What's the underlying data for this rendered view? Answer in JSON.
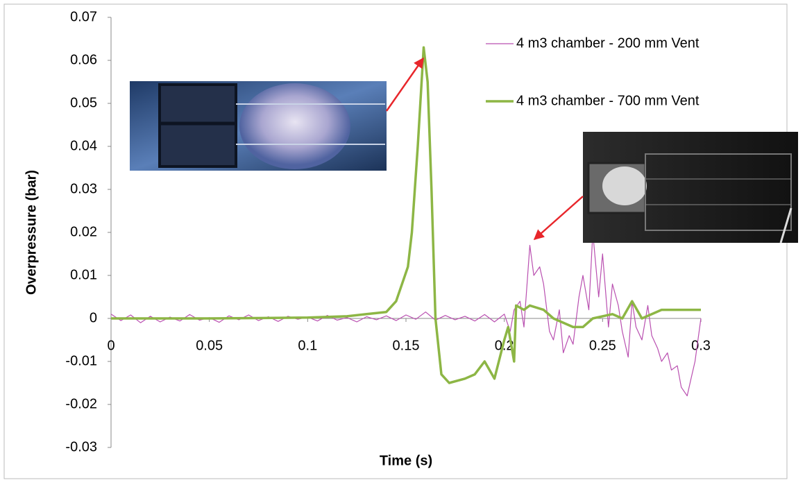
{
  "chart_data": {
    "type": "line",
    "x_label": "Time  (s)",
    "y_label": "Overpressure (bar)",
    "xlim": [
      0,
      0.3
    ],
    "xticks": [
      0,
      0.05,
      0.1,
      0.15,
      0.2,
      0.25,
      0.3
    ],
    "ylim": [
      -0.03,
      0.07
    ],
    "yticks": [
      -0.03,
      -0.02,
      -0.01,
      0,
      0.01,
      0.02,
      0.03,
      0.04,
      0.05,
      0.06,
      0.07
    ],
    "grid": false,
    "legend": "top-right",
    "series": [
      {
        "name": "4 m3 chamber - 200 mm Vent",
        "color": "#b94fb0",
        "width": 1.2,
        "x": [
          0,
          0.005,
          0.01,
          0.015,
          0.02,
          0.025,
          0.03,
          0.035,
          0.04,
          0.045,
          0.05,
          0.055,
          0.06,
          0.065,
          0.07,
          0.075,
          0.08,
          0.085,
          0.09,
          0.095,
          0.1,
          0.105,
          0.11,
          0.115,
          0.12,
          0.125,
          0.13,
          0.135,
          0.14,
          0.145,
          0.15,
          0.155,
          0.16,
          0.165,
          0.17,
          0.175,
          0.18,
          0.185,
          0.19,
          0.195,
          0.2,
          0.203,
          0.205,
          0.208,
          0.21,
          0.213,
          0.215,
          0.218,
          0.22,
          0.223,
          0.225,
          0.228,
          0.23,
          0.233,
          0.235,
          0.238,
          0.24,
          0.243,
          0.245,
          0.248,
          0.25,
          0.253,
          0.255,
          0.258,
          0.26,
          0.263,
          0.265,
          0.267,
          0.27,
          0.273,
          0.275,
          0.278,
          0.28,
          0.283,
          0.285,
          0.288,
          0.29,
          0.293,
          0.295,
          0.297,
          0.3
        ],
        "values": [
          0.001,
          -0.0005,
          0.0008,
          -0.001,
          0.0005,
          -0.0008,
          0.0003,
          -0.0006,
          0.0009,
          -0.0004,
          0.0002,
          -0.0009,
          0.0006,
          -0.0003,
          0.0008,
          -0.0005,
          0.0004,
          -0.0007,
          0.0005,
          -0.0002,
          0.0003,
          -0.0006,
          0.0007,
          -0.0004,
          0.0002,
          -0.0008,
          0.0004,
          -0.0003,
          0.0006,
          -0.0005,
          0.0008,
          -0.0002,
          0.0015,
          -0.0004,
          0.0007,
          -0.0003,
          0.0005,
          -0.0006,
          0.0009,
          -0.0008,
          0.001,
          -0.003,
          0.002,
          0.004,
          -0.002,
          0.017,
          0.01,
          0.012,
          0.008,
          -0.003,
          -0.005,
          0.002,
          -0.008,
          -0.004,
          -0.006,
          0.005,
          0.01,
          0.002,
          0.02,
          0.005,
          0.015,
          -0.002,
          0.008,
          0.003,
          -0.003,
          -0.009,
          0.004,
          -0.002,
          -0.005,
          0.003,
          -0.004,
          -0.007,
          -0.01,
          -0.008,
          -0.012,
          -0.011,
          -0.016,
          -0.018,
          -0.014,
          -0.01,
          0
        ]
      },
      {
        "name": "4 m3 chamber - 700 mm Vent",
        "color": "#8db645",
        "width": 3.5,
        "x": [
          0,
          0.05,
          0.1,
          0.12,
          0.13,
          0.14,
          0.145,
          0.148,
          0.151,
          0.153,
          0.156,
          0.159,
          0.161,
          0.163,
          0.165,
          0.168,
          0.172,
          0.18,
          0.185,
          0.19,
          0.195,
          0.2,
          0.202,
          0.205,
          0.206,
          0.21,
          0.213,
          0.22,
          0.225,
          0.235,
          0.24,
          0.245,
          0.255,
          0.26,
          0.265,
          0.27,
          0.28,
          0.29,
          0.3
        ],
        "values": [
          0,
          0,
          0.0002,
          0.0005,
          0.001,
          0.0015,
          0.004,
          0.008,
          0.012,
          0.02,
          0.04,
          0.063,
          0.055,
          0.03,
          0,
          -0.013,
          -0.015,
          -0.014,
          -0.013,
          -0.01,
          -0.014,
          -0.005,
          -0.002,
          -0.01,
          0.003,
          0.002,
          0.003,
          0.002,
          0,
          -0.002,
          -0.002,
          0,
          0.001,
          0,
          0.004,
          0,
          0.002,
          0.002,
          0.002
        ]
      }
    ]
  }
}
